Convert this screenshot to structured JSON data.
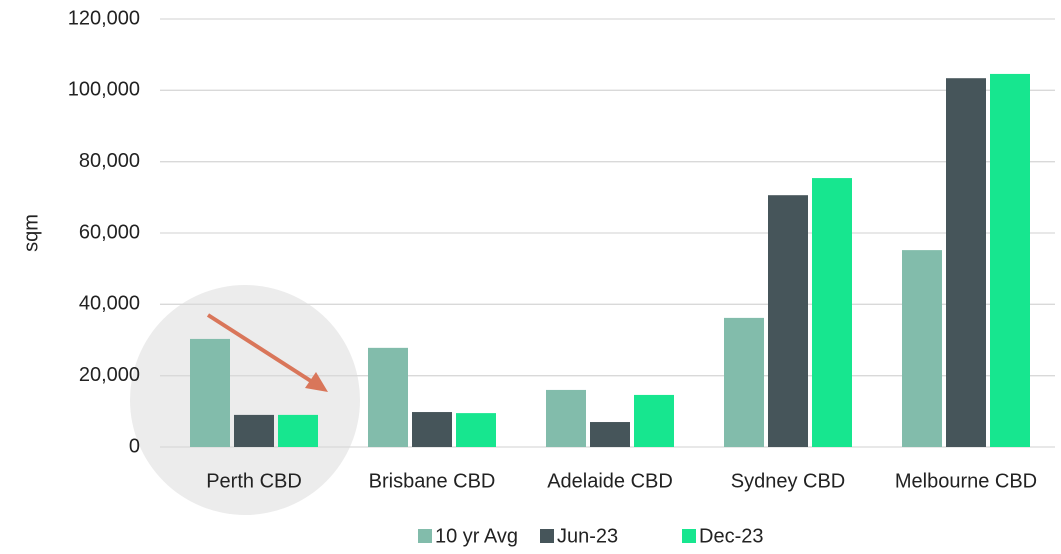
{
  "chart_data": {
    "type": "bar",
    "y_label": "sqm",
    "categories": [
      "Perth CBD",
      "Brisbane CBD",
      "Adelaide CBD",
      "Sydney CBD",
      "Melbourne CBD"
    ],
    "series": [
      {
        "name": "10 yr Avg",
        "color": "#82bcab",
        "values": [
          30300,
          27800,
          16000,
          36200,
          55200
        ]
      },
      {
        "name": "Jun-23",
        "color": "#46555a",
        "values": [
          9000,
          9800,
          7000,
          70600,
          103400
        ]
      },
      {
        "name": "Dec-23",
        "color": "#17e68f",
        "values": [
          9000,
          9500,
          14600,
          75400,
          104600
        ]
      }
    ],
    "ylim": [
      0,
      120000
    ],
    "yticks": [
      0,
      {
        "value": 20000,
        "label": "20,000"
      },
      {
        "value": 40000,
        "label": "40,000"
      },
      {
        "value": 60000,
        "label": "60,000"
      },
      {
        "value": 80000,
        "label": "80,000"
      },
      {
        "value": 100000,
        "label": "100,000"
      },
      {
        "value": 120000,
        "label": "120,000"
      }
    ],
    "grid": true,
    "legend": "bottom"
  }
}
